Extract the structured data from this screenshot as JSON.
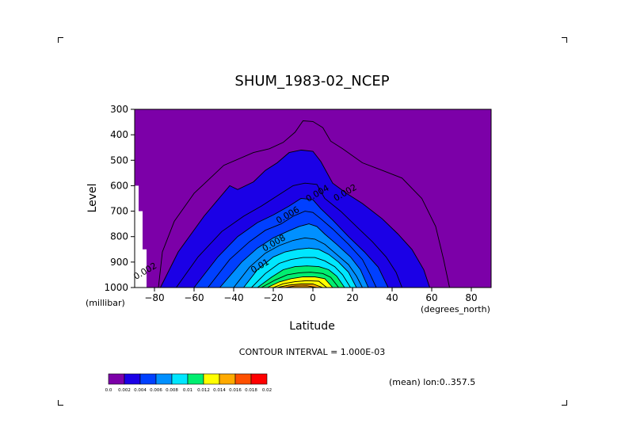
{
  "chart_data": {
    "type": "contour",
    "title": "SHUM_1983-02_NCEP",
    "xlabel": "Latitude",
    "ylabel": "Level",
    "x_unit": "(degrees_north)",
    "y_unit": "(millibar)",
    "xlim": [
      -90,
      90
    ],
    "ylim": [
      1000,
      300
    ],
    "x_ticks": [
      -80,
      -60,
      -40,
      -20,
      0,
      20,
      40,
      60,
      80
    ],
    "x_tick_labels": [
      "−80",
      "−60",
      "−40",
      "−20",
      "0",
      "20",
      "40",
      "60",
      "80"
    ],
    "y_ticks": [
      300,
      400,
      500,
      600,
      700,
      800,
      900,
      1000
    ],
    "y_tick_labels": [
      "300",
      "400",
      "500",
      "600",
      "700",
      "800",
      "900",
      "1000"
    ],
    "contour_interval_text": "CONTOUR INTERVAL = 1.000E-03",
    "mean_text": "(mean) lon:0..357.5",
    "levels": [
      0.0,
      0.002,
      0.004,
      0.006,
      0.008,
      0.01,
      0.012,
      0.014,
      0.016,
      0.018,
      0.02
    ],
    "colorbar_labels": [
      "0.0",
      "0.002",
      "0.004",
      "0.006",
      "0.008",
      "0.01",
      "0.012",
      "0.014",
      "0.016",
      "0.018",
      "0.02"
    ],
    "colors": [
      "#7c00a8",
      "#1b00e6",
      "#0040ff",
      "#0090ff",
      "#00e6ff",
      "#00ee70",
      "#ffff00",
      "#ffaa00",
      "#ff5000",
      "#ff0000"
    ],
    "contour_labels": [
      {
        "text": "0.002",
        "lat": 17,
        "level": 637
      },
      {
        "text": "0.002",
        "lat": -84,
        "level": 945
      },
      {
        "text": "0.004",
        "lat": 3,
        "level": 640
      },
      {
        "text": "0.006",
        "lat": -12,
        "level": 725
      },
      {
        "text": "0.008",
        "lat": -19,
        "level": 835
      },
      {
        "text": "0.01",
        "lat": -26,
        "level": 925
      }
    ],
    "isolines": [
      {
        "level": 0.001,
        "points": [
          [
            -78,
            1000
          ],
          [
            -76,
            860
          ],
          [
            -70,
            740
          ],
          [
            -60,
            630
          ],
          [
            -45,
            520
          ],
          [
            -30,
            470
          ],
          [
            -22,
            455
          ],
          [
            -15,
            430
          ],
          [
            -9,
            390
          ],
          [
            -5,
            345
          ],
          [
            0,
            348
          ],
          [
            5,
            372
          ],
          [
            9,
            425
          ],
          [
            15,
            455
          ],
          [
            25,
            510
          ],
          [
            35,
            540
          ],
          [
            45,
            570
          ],
          [
            55,
            650
          ],
          [
            62,
            760
          ],
          [
            66,
            890
          ],
          [
            69,
            1000
          ]
        ]
      },
      {
        "level": 0.002,
        "points": [
          [
            -77,
            1000
          ],
          [
            -68,
            860
          ],
          [
            -55,
            720
          ],
          [
            -42,
            600
          ],
          [
            -38,
            615
          ],
          [
            -30,
            585
          ],
          [
            -24,
            540
          ],
          [
            -18,
            510
          ],
          [
            -12,
            470
          ],
          [
            -6,
            460
          ],
          [
            0,
            465
          ],
          [
            4,
            505
          ],
          [
            10,
            590
          ],
          [
            17,
            630
          ],
          [
            25,
            670
          ],
          [
            35,
            730
          ],
          [
            43,
            790
          ],
          [
            50,
            850
          ],
          [
            56,
            930
          ],
          [
            59,
            1000
          ]
        ]
      },
      {
        "level": 0.003,
        "points": [
          [
            -69,
            1000
          ],
          [
            -58,
            880
          ],
          [
            -46,
            780
          ],
          [
            -35,
            720
          ],
          [
            -26,
            680
          ],
          [
            -18,
            640
          ],
          [
            -10,
            600
          ],
          [
            -4,
            590
          ],
          [
            2,
            595
          ],
          [
            6,
            650
          ],
          [
            14,
            700
          ],
          [
            22,
            760
          ],
          [
            30,
            820
          ],
          [
            37,
            880
          ],
          [
            42,
            940
          ],
          [
            45,
            1000
          ]
        ]
      },
      {
        "level": 0.004,
        "points": [
          [
            -60,
            1000
          ],
          [
            -48,
            880
          ],
          [
            -38,
            800
          ],
          [
            -28,
            745
          ],
          [
            -20,
            715
          ],
          [
            -12,
            680
          ],
          [
            -6,
            650
          ],
          [
            0,
            655
          ],
          [
            4,
            690
          ],
          [
            10,
            735
          ],
          [
            18,
            800
          ],
          [
            26,
            860
          ],
          [
            33,
            920
          ],
          [
            38,
            1000
          ]
        ]
      },
      {
        "level": 0.005,
        "points": [
          [
            -53,
            1000
          ],
          [
            -42,
            890
          ],
          [
            -32,
            820
          ],
          [
            -24,
            775
          ],
          [
            -16,
            750
          ],
          [
            -10,
            720
          ],
          [
            -4,
            700
          ],
          [
            0,
            705
          ],
          [
            4,
            730
          ],
          [
            10,
            770
          ],
          [
            18,
            830
          ],
          [
            25,
            890
          ],
          [
            29,
            950
          ],
          [
            32,
            1000
          ]
        ]
      },
      {
        "level": 0.006,
        "points": [
          [
            -47,
            1000
          ],
          [
            -36,
            900
          ],
          [
            -28,
            845
          ],
          [
            -20,
            805
          ],
          [
            -13,
            780
          ],
          [
            -7,
            760
          ],
          [
            -2,
            750
          ],
          [
            2,
            760
          ],
          [
            6,
            790
          ],
          [
            12,
            830
          ],
          [
            19,
            880
          ],
          [
            24,
            930
          ],
          [
            28,
            1000
          ]
        ]
      },
      {
        "level": 0.007,
        "points": [
          [
            -40,
            1000
          ],
          [
            -32,
            920
          ],
          [
            -24,
            865
          ],
          [
            -17,
            835
          ],
          [
            -10,
            815
          ],
          [
            -4,
            805
          ],
          [
            1,
            810
          ],
          [
            6,
            830
          ],
          [
            12,
            870
          ],
          [
            18,
            910
          ],
          [
            22,
            955
          ],
          [
            25,
            1000
          ]
        ]
      },
      {
        "level": 0.008,
        "points": [
          [
            -35,
            1000
          ],
          [
            -28,
            930
          ],
          [
            -20,
            880
          ],
          [
            -14,
            860
          ],
          [
            -8,
            850
          ],
          [
            -2,
            845
          ],
          [
            3,
            850
          ],
          [
            8,
            870
          ],
          [
            13,
            900
          ],
          [
            18,
            940
          ],
          [
            22,
            1000
          ]
        ]
      },
      {
        "level": 0.009,
        "points": [
          [
            -31,
            1000
          ],
          [
            -24,
            945
          ],
          [
            -17,
            905
          ],
          [
            -11,
            890
          ],
          [
            -5,
            882
          ],
          [
            1,
            882
          ],
          [
            6,
            895
          ],
          [
            11,
            918
          ],
          [
            15,
            950
          ],
          [
            19,
            1000
          ]
        ]
      },
      {
        "level": 0.01,
        "points": [
          [
            -28,
            1000
          ],
          [
            -21,
            960
          ],
          [
            -15,
            930
          ],
          [
            -9,
            918
          ],
          [
            -3,
            915
          ],
          [
            3,
            918
          ],
          [
            8,
            930
          ],
          [
            12,
            955
          ],
          [
            16,
            1000
          ]
        ]
      },
      {
        "level": 0.011,
        "points": [
          [
            -26,
            1000
          ],
          [
            -19,
            970
          ],
          [
            -13,
            950
          ],
          [
            -7,
            942
          ],
          [
            -1,
            940
          ],
          [
            5,
            945
          ],
          [
            9,
            960
          ],
          [
            13,
            1000
          ]
        ]
      },
      {
        "level": 0.012,
        "points": [
          [
            -23,
            1000
          ],
          [
            -17,
            978
          ],
          [
            -11,
            965
          ],
          [
            -5,
            958
          ],
          [
            1,
            958
          ],
          [
            6,
            965
          ],
          [
            10,
            1000
          ]
        ]
      },
      {
        "level": 0.013,
        "points": [
          [
            -20,
            1000
          ],
          [
            -15,
            985
          ],
          [
            -9,
            977
          ],
          [
            -3,
            973
          ],
          [
            3,
            975
          ],
          [
            7,
            1000
          ]
        ]
      },
      {
        "level": 0.014,
        "points": [
          [
            -18,
            1000
          ],
          [
            -12,
            990
          ],
          [
            -6,
            986
          ],
          [
            0,
            986
          ],
          [
            5,
            1000
          ]
        ]
      },
      {
        "level": 0.015,
        "points": [
          [
            -14,
            1000
          ],
          [
            -9,
            994
          ],
          [
            -3,
            993
          ],
          [
            2,
            1000
          ]
        ]
      }
    ],
    "missing_cells": [
      {
        "lat0": -90,
        "lat1": -88,
        "level0": 600,
        "level1": 1000
      },
      {
        "lat0": -88,
        "lat1": -86,
        "level0": 700,
        "level1": 1000
      },
      {
        "lat0": -86,
        "lat1": -84,
        "level0": 850,
        "level1": 1000
      }
    ]
  }
}
